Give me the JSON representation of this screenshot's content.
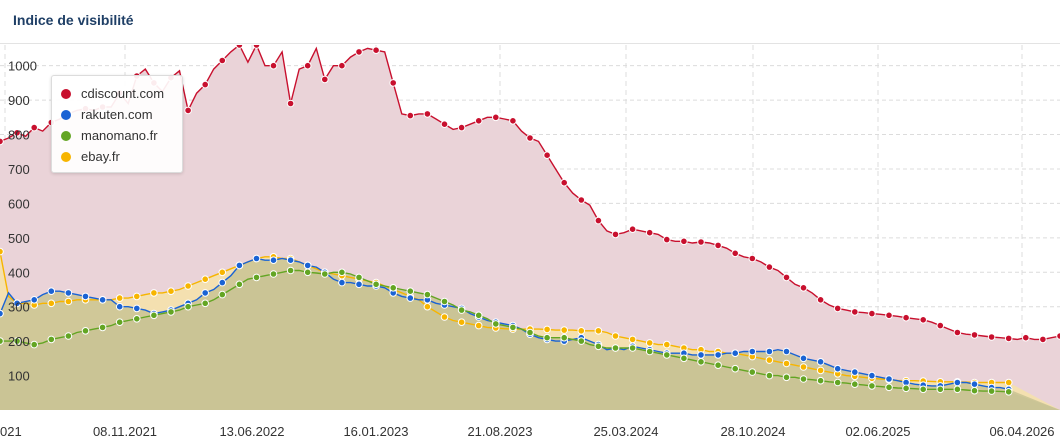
{
  "header": {
    "title": "Indice de visibilité"
  },
  "legend": [
    {
      "label": "cdiscount.com",
      "color": "#c8102e"
    },
    {
      "label": "rakuten.com",
      "color": "#1a63d4"
    },
    {
      "label": "manomano.fr",
      "color": "#63a523"
    },
    {
      "label": "ebay.fr",
      "color": "#f7b500"
    }
  ],
  "chart_data": {
    "type": "area",
    "title": "Indice de visibilité",
    "ylim": [
      0,
      1060
    ],
    "y_ticks": [
      100,
      200,
      300,
      400,
      500,
      600,
      700,
      800,
      900,
      1000
    ],
    "x_ticks": [
      "021",
      "08.11.2021",
      "13.06.2022",
      "16.01.2023",
      "21.08.2023",
      "25.03.2024",
      "28.10.2024",
      "02.06.2025",
      "06.04.2026"
    ],
    "grid": true,
    "legend_position": "top-left",
    "series": [
      {
        "name": "cdiscount.com",
        "color": "#c8102e",
        "fill": "#ead3d8",
        "values": [
          780,
          790,
          805,
          795,
          820,
          810,
          835,
          845,
          860,
          870,
          875,
          870,
          880,
          880,
          920,
          890,
          970,
          990,
          950,
          925,
          965,
          985,
          870,
          920,
          945,
          990,
          1015,
          1040,
          1060,
          1010,
          1060,
          1000,
          1000,
          1040,
          890,
          990,
          1000,
          1050,
          960,
          1000,
          1000,
          1025,
          1040,
          1050,
          1045,
          1040,
          950,
          860,
          855,
          860,
          860,
          845,
          830,
          815,
          820,
          830,
          840,
          850,
          850,
          845,
          840,
          810,
          790,
          780,
          740,
          700,
          660,
          630,
          610,
          595,
          550,
          520,
          510,
          515,
          525,
          520,
          515,
          510,
          495,
          490,
          490,
          485,
          488,
          485,
          478,
          470,
          455,
          445,
          440,
          430,
          415,
          405,
          385,
          365,
          355,
          340,
          320,
          305,
          295,
          290,
          285,
          283,
          280,
          278,
          275,
          272,
          268,
          265,
          262,
          255,
          245,
          235,
          225,
          220,
          218,
          215,
          212,
          210,
          208,
          205,
          210,
          205,
          205,
          210,
          215
        ]
      },
      {
        "name": "rakuten.com",
        "color": "#1a63d4",
        "fill": "#c9c394",
        "values": [
          280,
          340,
          310,
          315,
          320,
          335,
          345,
          345,
          340,
          335,
          330,
          325,
          320,
          320,
          300,
          300,
          295,
          290,
          280,
          285,
          290,
          300,
          310,
          320,
          340,
          350,
          370,
          390,
          420,
          430,
          440,
          435,
          435,
          440,
          435,
          430,
          420,
          415,
          400,
          380,
          370,
          370,
          365,
          360,
          360,
          355,
          340,
          330,
          325,
          320,
          320,
          310,
          305,
          300,
          295,
          280,
          270,
          260,
          255,
          250,
          245,
          235,
          220,
          210,
          205,
          200,
          200,
          205,
          210,
          200,
          190,
          175,
          180,
          175,
          185,
          180,
          175,
          170,
          165,
          165,
          165,
          160,
          160,
          160,
          160,
          165,
          165,
          170,
          170,
          170,
          170,
          175,
          170,
          160,
          150,
          145,
          140,
          130,
          120,
          115,
          110,
          105,
          100,
          95,
          90,
          85,
          80,
          75,
          72,
          70,
          70,
          75,
          80,
          80,
          75,
          70,
          65,
          65,
          60
        ]
      },
      {
        "name": "manomano.fr",
        "color": "#63a523",
        "fill": "#c9c394",
        "values": [
          200,
          200,
          200,
          195,
          190,
          195,
          205,
          210,
          215,
          225,
          230,
          235,
          240,
          245,
          255,
          260,
          265,
          270,
          275,
          280,
          285,
          290,
          300,
          305,
          310,
          320,
          335,
          350,
          365,
          380,
          385,
          390,
          395,
          400,
          405,
          405,
          400,
          398,
          395,
          400,
          400,
          395,
          385,
          375,
          365,
          360,
          355,
          350,
          345,
          340,
          335,
          325,
          315,
          305,
          290,
          285,
          275,
          265,
          250,
          245,
          240,
          235,
          225,
          215,
          210,
          210,
          210,
          205,
          200,
          190,
          185,
          180,
          180,
          180,
          180,
          175,
          170,
          165,
          160,
          155,
          150,
          145,
          140,
          135,
          130,
          125,
          120,
          115,
          110,
          105,
          100,
          100,
          95,
          95,
          90,
          88,
          85,
          82,
          80,
          78,
          75,
          73,
          70,
          68,
          66,
          64,
          63,
          62,
          60,
          60,
          60,
          60,
          60,
          58,
          56,
          55,
          55,
          54,
          53
        ]
      },
      {
        "name": "ebay.fr",
        "color": "#f7b500",
        "fill": "#f6e2a9",
        "values": [
          460,
          330,
          310,
          310,
          305,
          310,
          310,
          315,
          315,
          320,
          320,
          320,
          320,
          320,
          325,
          325,
          330,
          335,
          340,
          340,
          345,
          350,
          360,
          370,
          380,
          390,
          400,
          410,
          420,
          430,
          440,
          445,
          445,
          440,
          440,
          430,
          420,
          410,
          400,
          395,
          390,
          385,
          380,
          375,
          370,
          360,
          350,
          340,
          330,
          320,
          300,
          285,
          270,
          260,
          255,
          250,
          245,
          240,
          238,
          236,
          235,
          235,
          235,
          235,
          234,
          232,
          232,
          232,
          230,
          230,
          230,
          225,
          215,
          210,
          205,
          200,
          195,
          190,
          190,
          185,
          180,
          175,
          175,
          170,
          170,
          165,
          165,
          160,
          155,
          150,
          145,
          140,
          135,
          130,
          125,
          120,
          115,
          110,
          105,
          100,
          98,
          95,
          92,
          90,
          88,
          86,
          85,
          85,
          84,
          83,
          82,
          82,
          82,
          81,
          80,
          80,
          80,
          80,
          80
        ]
      }
    ]
  }
}
